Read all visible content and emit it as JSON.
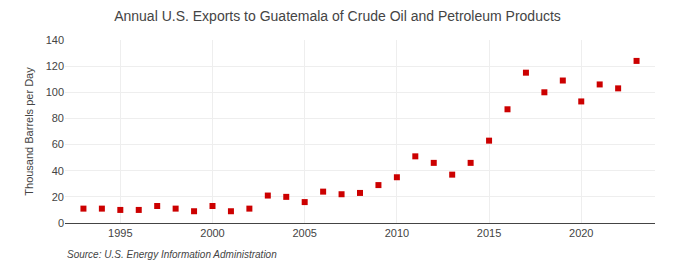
{
  "chart_data": {
    "type": "scatter",
    "title": "Annual U.S. Exports to Guatemala of Crude Oil and Petroleum Products",
    "ylabel": "Thousand Barrels per Day",
    "source": "Source: U.S. Energy Information Administration",
    "x": [
      1993,
      1994,
      1995,
      1996,
      1997,
      1998,
      1999,
      2000,
      2001,
      2002,
      2003,
      2004,
      2005,
      2006,
      2007,
      2008,
      2009,
      2010,
      2011,
      2012,
      2013,
      2014,
      2015,
      2016,
      2017,
      2018,
      2019,
      2020,
      2021,
      2022,
      2023
    ],
    "values": [
      11,
      11,
      10,
      10,
      13,
      11,
      9,
      13,
      9,
      11,
      21,
      20,
      16,
      24,
      22,
      23,
      29,
      35,
      51,
      46,
      37,
      46,
      63,
      87,
      115,
      100,
      109,
      93,
      106,
      103,
      124
    ],
    "color": "#cc0000",
    "marker": "square",
    "xlim": [
      1992,
      2024
    ],
    "xticks": [
      1995,
      2000,
      2005,
      2010,
      2015,
      2020
    ],
    "ylim": [
      0,
      140
    ],
    "yticks": [
      0,
      20,
      40,
      60,
      80,
      100,
      120,
      140
    ],
    "grid": true
  }
}
